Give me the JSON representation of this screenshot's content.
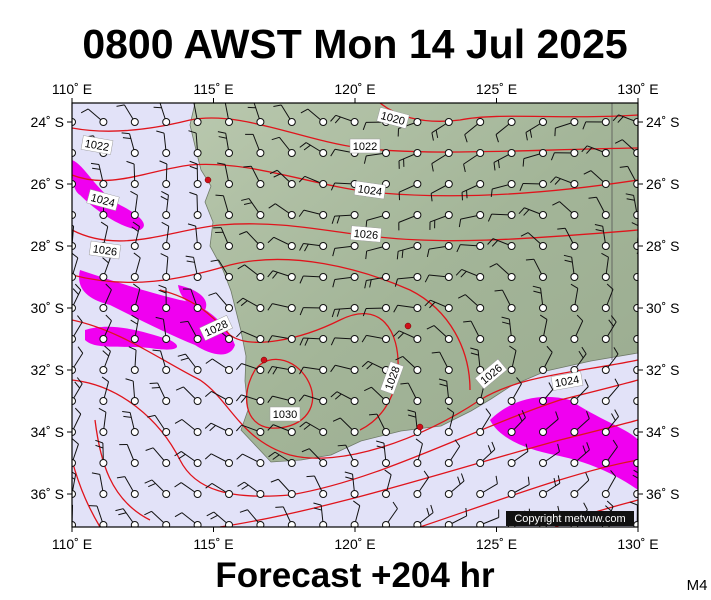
{
  "title": "0800 AWST Mon 14 Jul 2025",
  "subtitle": "Forecast +204 hr",
  "corner_label": "M4",
  "copyright": "Copyright metvuw.com",
  "longitudes": [
    {
      "value": 110,
      "label": "110˚ E"
    },
    {
      "value": 115,
      "label": "115˚ E"
    },
    {
      "value": 120,
      "label": "120˚ E"
    },
    {
      "value": 125,
      "label": "125˚ E"
    },
    {
      "value": 130,
      "label": "130˚ E"
    }
  ],
  "latitudes": [
    {
      "value": 24,
      "label": "24˚ S"
    },
    {
      "value": 26,
      "label": "26˚ S"
    },
    {
      "value": 28,
      "label": "28˚ S"
    },
    {
      "value": 30,
      "label": "30˚ S"
    },
    {
      "value": 32,
      "label": "32˚ S"
    },
    {
      "value": 34,
      "label": "34˚ S"
    },
    {
      "value": 36,
      "label": "36˚ S"
    }
  ],
  "isobar_labels": [
    1020,
    1022,
    1022,
    1024,
    1024,
    1026,
    1026,
    1028,
    1028,
    1026,
    1024,
    1030
  ]
}
